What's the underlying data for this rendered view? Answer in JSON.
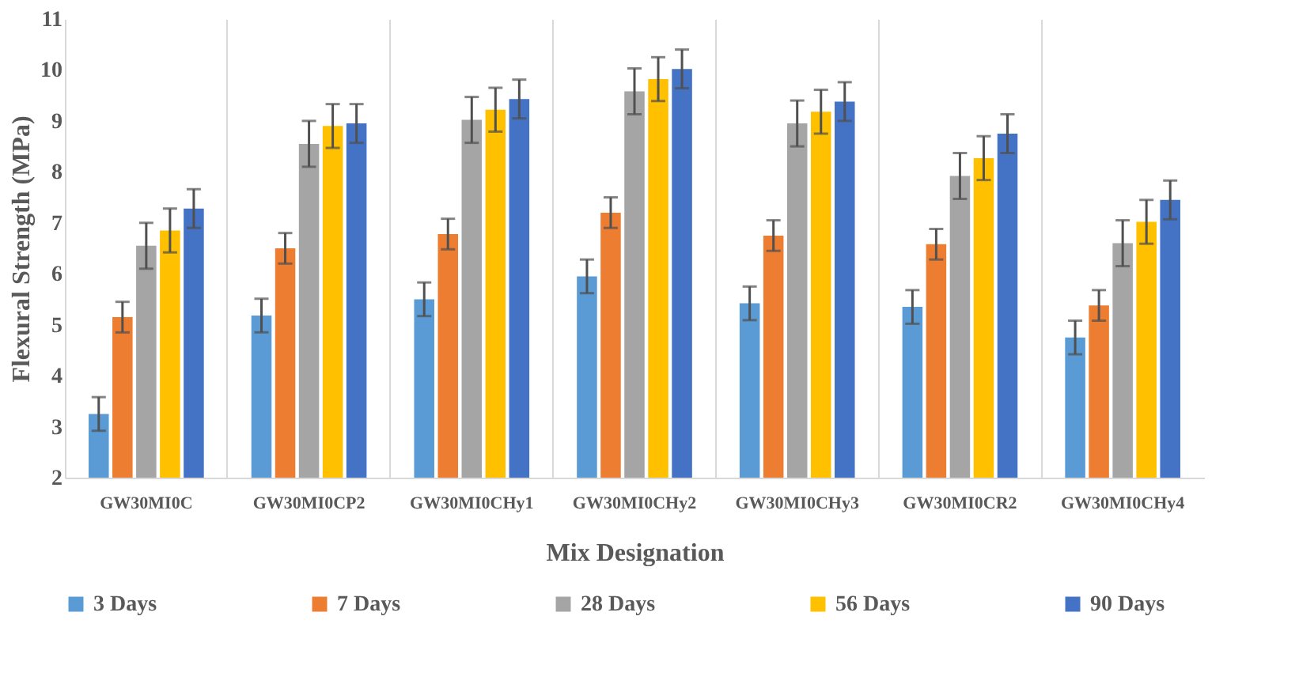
{
  "chart_data": {
    "type": "bar",
    "xlabel": "Mix Designation",
    "ylabel": "Flexural  Strength (MPa)",
    "categories": [
      "GW30MI0C",
      "GW30MI0CP2",
      "GW30MI0CHy1",
      "GW30MI0CHy2",
      "GW30MI0CHy3",
      "GW30MI0CR2",
      "GW30MI0CHy4"
    ],
    "series": [
      {
        "name": "3 Days",
        "color": "#5b9bd5",
        "values": [
          3.25,
          5.18,
          5.5,
          5.95,
          5.42,
          5.35,
          4.75
        ],
        "errors": [
          0.33,
          0.33,
          0.33,
          0.33,
          0.33,
          0.33,
          0.33
        ]
      },
      {
        "name": "7 Days",
        "color": "#ed7d31",
        "values": [
          5.15,
          6.5,
          6.78,
          7.2,
          6.75,
          6.58,
          5.38
        ],
        "errors": [
          0.3,
          0.3,
          0.3,
          0.3,
          0.3,
          0.3,
          0.3
        ]
      },
      {
        "name": "28 Days",
        "color": "#a5a5a5",
        "values": [
          6.55,
          8.55,
          9.02,
          9.58,
          8.95,
          7.92,
          6.6
        ],
        "errors": [
          0.45,
          0.45,
          0.45,
          0.45,
          0.45,
          0.45,
          0.45
        ]
      },
      {
        "name": "56 Days",
        "color": "#ffc000",
        "values": [
          6.85,
          8.9,
          9.22,
          9.82,
          9.18,
          8.27,
          7.02
        ],
        "errors": [
          0.43,
          0.43,
          0.43,
          0.43,
          0.43,
          0.43,
          0.43
        ]
      },
      {
        "name": "90 Days",
        "color": "#4472c4",
        "values": [
          7.28,
          8.95,
          9.43,
          10.02,
          9.38,
          8.75,
          7.45
        ],
        "errors": [
          0.38,
          0.38,
          0.38,
          0.38,
          0.38,
          0.38,
          0.38
        ]
      }
    ],
    "ylim": [
      2,
      11
    ],
    "yticks": [
      2,
      3,
      4,
      5,
      6,
      7,
      8,
      9,
      10,
      11
    ],
    "grid": "x",
    "legend": "bottom"
  }
}
